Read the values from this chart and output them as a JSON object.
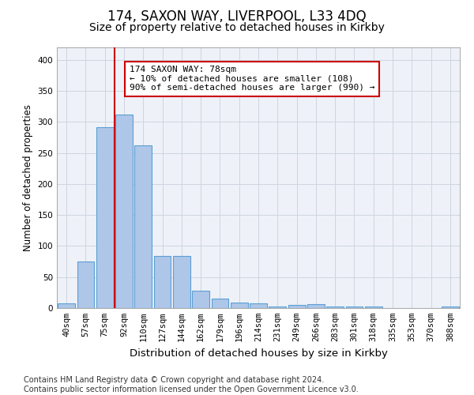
{
  "title1": "174, SAXON WAY, LIVERPOOL, L33 4DQ",
  "title2": "Size of property relative to detached houses in Kirkby",
  "xlabel": "Distribution of detached houses by size in Kirkby",
  "ylabel": "Number of detached properties",
  "categories": [
    "40sqm",
    "57sqm",
    "75sqm",
    "92sqm",
    "110sqm",
    "127sqm",
    "144sqm",
    "162sqm",
    "179sqm",
    "196sqm",
    "214sqm",
    "231sqm",
    "249sqm",
    "266sqm",
    "283sqm",
    "301sqm",
    "318sqm",
    "335sqm",
    "353sqm",
    "370sqm",
    "388sqm"
  ],
  "values": [
    8,
    75,
    291,
    312,
    262,
    84,
    84,
    28,
    15,
    9,
    8,
    2,
    5,
    6,
    3,
    2,
    2,
    0,
    0,
    0,
    3
  ],
  "bar_color": "#aec6e8",
  "bar_edge_color": "#5a9fd4",
  "vline_color": "#cc0000",
  "annotation_text": "174 SAXON WAY: 78sqm\n← 10% of detached houses are smaller (108)\n90% of semi-detached houses are larger (990) →",
  "annotation_box_color": "#cc0000",
  "annotation_text_color": "#000000",
  "ylim": [
    0,
    420
  ],
  "yticks": [
    0,
    50,
    100,
    150,
    200,
    250,
    300,
    350,
    400
  ],
  "grid_color": "#cdd5e0",
  "background_color": "#eef2f8",
  "footer": "Contains HM Land Registry data © Crown copyright and database right 2024.\nContains public sector information licensed under the Open Government Licence v3.0.",
  "title1_fontsize": 12,
  "title2_fontsize": 10,
  "xlabel_fontsize": 9.5,
  "ylabel_fontsize": 8.5,
  "tick_fontsize": 7.5,
  "footer_fontsize": 7.0,
  "annotation_fontsize": 8
}
